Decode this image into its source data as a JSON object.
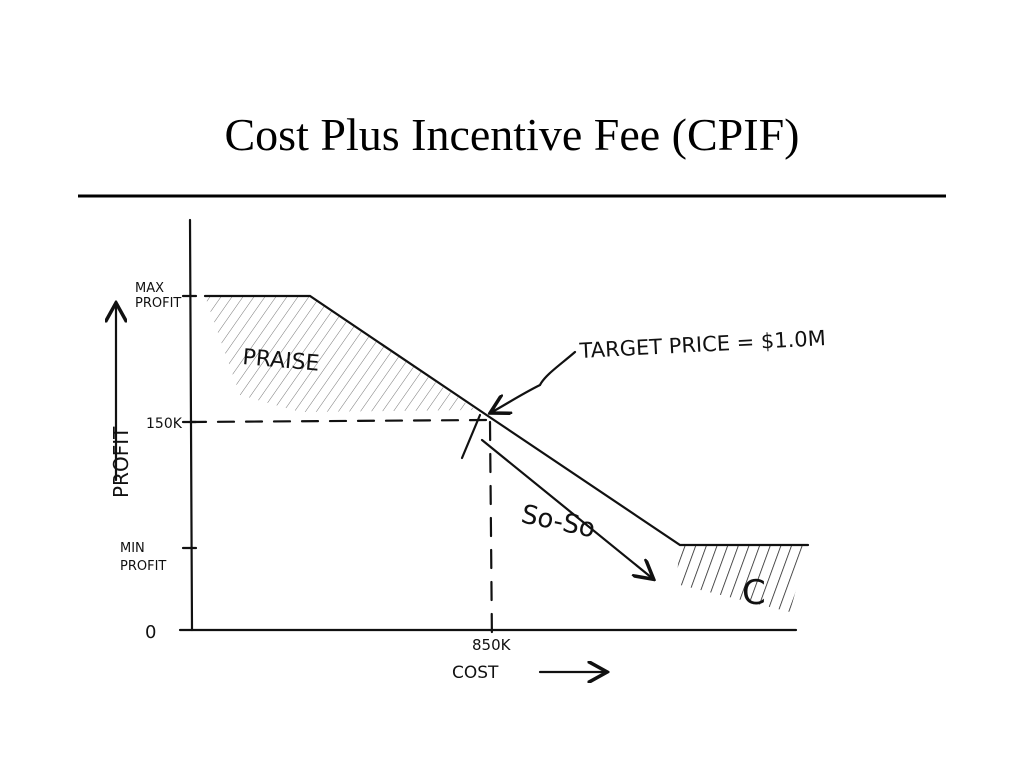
{
  "title": "Cost Plus Incentive Fee (CPIF)",
  "diagram": {
    "y_axis": {
      "label": "PROFIT",
      "max_profit": [
        "MAX",
        "PROFIT"
      ],
      "target_profit": "150K",
      "min_profit": [
        "MIN",
        "PROFIT"
      ],
      "zero": "0"
    },
    "x_axis": {
      "label": "COST",
      "target_cost": "850K"
    },
    "annotations": {
      "praise": "PRAISE",
      "target_price": "TARGET PRICE = $1.0M",
      "so_so": "So-So",
      "grade": "C"
    }
  }
}
